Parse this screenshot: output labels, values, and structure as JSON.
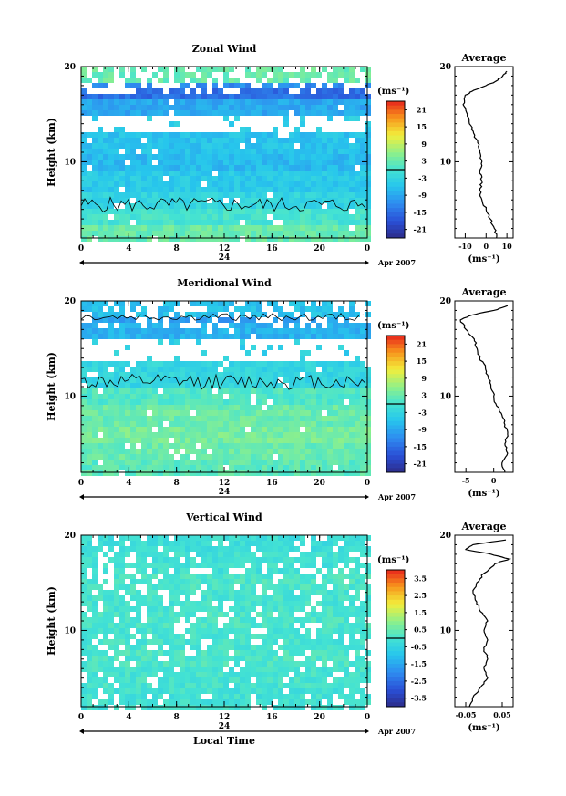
{
  "chart_data": [
    {
      "type": "heatmap",
      "title": "Zonal Wind",
      "ylabel": "Height (km)",
      "xlabel": "",
      "x_ticks": [
        "0",
        "4",
        "8",
        "12",
        "16",
        "20",
        "0"
      ],
      "y_ticks": [
        "20",
        "10"
      ],
      "xlim": [
        0,
        24
      ],
      "ylim": [
        2,
        20
      ],
      "date_day": "24",
      "date_label": "Apr 2007",
      "unit": "(ms⁻¹)",
      "colorbar_ticks": [
        "21",
        "15",
        "9",
        "3",
        "-3",
        "-9",
        "-15",
        "-21"
      ],
      "colorbar_range": [
        -24,
        24
      ],
      "zero_contour": true,
      "rows": [
        {
          "h": 19.0,
          "v": 3
        },
        {
          "h": 18.0,
          "v": -12
        },
        {
          "h": 17.0,
          "v": -15
        },
        {
          "h": 16.0,
          "v": -9
        },
        {
          "h": 14.0,
          "v": null
        },
        {
          "h": 12.0,
          "v": -6
        },
        {
          "h": 10.0,
          "v": -7
        },
        {
          "h": 8.0,
          "v": -5
        },
        {
          "h": 6.0,
          "v": -3
        },
        {
          "h": 4.0,
          "v": 0
        },
        {
          "h": 2.5,
          "v": 3
        }
      ],
      "profile": {
        "title": "Average",
        "y_ticks": [
          "20",
          "10"
        ],
        "x_ticks": [
          "-10",
          "0",
          "10"
        ],
        "xlim": [
          -15,
          13
        ],
        "xlabel": "(ms⁻¹)",
        "points": [
          {
            "h": 2,
            "v": 5
          },
          {
            "h": 3,
            "v": 4
          },
          {
            "h": 4,
            "v": 2
          },
          {
            "h": 5,
            "v": 0
          },
          {
            "h": 6,
            "v": -2
          },
          {
            "h": 7,
            "v": -3
          },
          {
            "h": 8,
            "v": -2
          },
          {
            "h": 9,
            "v": -3
          },
          {
            "h": 10,
            "v": -2
          },
          {
            "h": 11,
            "v": -3
          },
          {
            "h": 12,
            "v": -4
          },
          {
            "h": 13,
            "v": -6
          },
          {
            "h": 14,
            "v": -8
          },
          {
            "h": 15,
            "v": -9
          },
          {
            "h": 16,
            "v": -11
          },
          {
            "h": 17,
            "v": -10
          },
          {
            "h": 17.5,
            "v": -6
          },
          {
            "h": 18,
            "v": 0
          },
          {
            "h": 18.5,
            "v": 5
          },
          {
            "h": 19,
            "v": 8
          },
          {
            "h": 19.5,
            "v": 10
          }
        ]
      }
    },
    {
      "type": "heatmap",
      "title": "Meridional Wind",
      "ylabel": "Height (km)",
      "xlabel": "",
      "x_ticks": [
        "0",
        "4",
        "8",
        "12",
        "16",
        "20",
        "0"
      ],
      "y_ticks": [
        "20",
        "10"
      ],
      "xlim": [
        0,
        24
      ],
      "ylim": [
        2,
        20
      ],
      "date_day": "24",
      "date_label": "Apr 2007",
      "unit": "(ms⁻¹)",
      "colorbar_ticks": [
        "21",
        "15",
        "9",
        "3",
        "-3",
        "-9",
        "-15",
        "-21"
      ],
      "colorbar_range": [
        -24,
        24
      ],
      "zero_contour": true,
      "rows": [
        {
          "h": 19.0,
          "v": -6
        },
        {
          "h": 18.0,
          "v": -10
        },
        {
          "h": 17.0,
          "v": -8
        },
        {
          "h": 15.0,
          "v": null
        },
        {
          "h": 12.0,
          "v": -3
        },
        {
          "h": 10.0,
          "v": 1
        },
        {
          "h": 8.0,
          "v": 3
        },
        {
          "h": 6.0,
          "v": 4
        },
        {
          "h": 4.0,
          "v": 3
        },
        {
          "h": 2.5,
          "v": 2
        }
      ],
      "profile": {
        "title": "Average",
        "y_ticks": [
          "20",
          "10"
        ],
        "x_ticks": [
          "-5",
          "0"
        ],
        "xlim": [
          -7,
          3.5
        ],
        "xlabel": "(ms⁻¹)",
        "points": [
          {
            "h": 2,
            "v": 2
          },
          {
            "h": 3,
            "v": 1.5
          },
          {
            "h": 4,
            "v": 2.5
          },
          {
            "h": 5,
            "v": 2
          },
          {
            "h": 6,
            "v": 2.5
          },
          {
            "h": 7,
            "v": 2
          },
          {
            "h": 8,
            "v": 1.5
          },
          {
            "h": 9,
            "v": 0.5
          },
          {
            "h": 10,
            "v": 0
          },
          {
            "h": 11,
            "v": -0.5
          },
          {
            "h": 12,
            "v": -1
          },
          {
            "h": 13,
            "v": -1.5
          },
          {
            "h": 14,
            "v": -2.5
          },
          {
            "h": 15,
            "v": -3
          },
          {
            "h": 16,
            "v": -3.5
          },
          {
            "h": 17,
            "v": -5
          },
          {
            "h": 18,
            "v": -6
          },
          {
            "h": 18.5,
            "v": -4
          },
          {
            "h": 19,
            "v": 0
          },
          {
            "h": 19.5,
            "v": 2.5
          }
        ]
      }
    },
    {
      "type": "heatmap",
      "title": "Vertical Wind",
      "ylabel": "Height (km)",
      "xlabel": "Local Time",
      "x_ticks": [
        "0",
        "4",
        "8",
        "12",
        "16",
        "20",
        "0"
      ],
      "y_ticks": [
        "20",
        "10"
      ],
      "xlim": [
        0,
        24
      ],
      "ylim": [
        2,
        20
      ],
      "date_day": "24",
      "date_label": "Apr 2007",
      "unit": "(ms⁻¹)",
      "colorbar_ticks": [
        "3.5",
        "2.5",
        "1.5",
        "0.5",
        "-0.5",
        "-1.5",
        "-2.5",
        "-3.5"
      ],
      "colorbar_range": [
        -4,
        4
      ],
      "zero_contour": false,
      "rows": [
        {
          "h": 19.0,
          "v": -0.2
        },
        {
          "h": 17.0,
          "v": -0.1
        },
        {
          "h": 15.0,
          "v": 0.1
        },
        {
          "h": 13.0,
          "v": 0.0
        },
        {
          "h": 11.0,
          "v": 0.1
        },
        {
          "h": 9.0,
          "v": 0.0
        },
        {
          "h": 7.0,
          "v": 0.1
        },
        {
          "h": 5.0,
          "v": 0.0
        },
        {
          "h": 3.0,
          "v": -0.1
        }
      ],
      "profile": {
        "title": "Average",
        "y_ticks": [
          "20",
          "10"
        ],
        "x_ticks": [
          "-0.05",
          "0.05"
        ],
        "xlim": [
          -0.08,
          0.08
        ],
        "xlabel": "(ms⁻¹)",
        "points": [
          {
            "h": 2,
            "v": -0.04
          },
          {
            "h": 3,
            "v": -0.03
          },
          {
            "h": 4,
            "v": -0.01
          },
          {
            "h": 5,
            "v": 0.01
          },
          {
            "h": 6,
            "v": 0.0
          },
          {
            "h": 7,
            "v": 0.01
          },
          {
            "h": 8,
            "v": 0.0
          },
          {
            "h": 9,
            "v": 0.01
          },
          {
            "h": 10,
            "v": 0.0
          },
          {
            "h": 11,
            "v": 0.01
          },
          {
            "h": 12,
            "v": -0.01
          },
          {
            "h": 13,
            "v": -0.02
          },
          {
            "h": 14,
            "v": -0.03
          },
          {
            "h": 15,
            "v": -0.02
          },
          {
            "h": 16,
            "v": 0.0
          },
          {
            "h": 17,
            "v": 0.03
          },
          {
            "h": 17.5,
            "v": 0.07
          },
          {
            "h": 18,
            "v": 0.02
          },
          {
            "h": 18.5,
            "v": -0.05
          },
          {
            "h": 19,
            "v": -0.03
          },
          {
            "h": 19.5,
            "v": 0.06
          }
        ]
      }
    }
  ]
}
